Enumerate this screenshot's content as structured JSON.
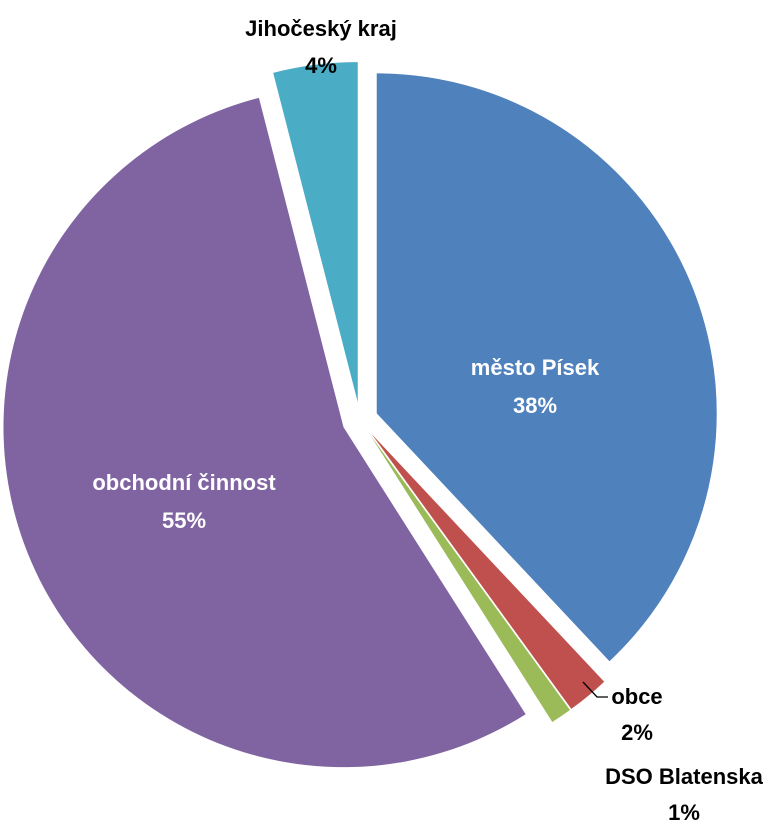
{
  "chart_data": {
    "type": "pie",
    "title": "",
    "slices": [
      {
        "name": "město Písek",
        "value": 38,
        "label": "38%",
        "color": "#4F81BD"
      },
      {
        "name": "obce",
        "value": 2,
        "label": "2%",
        "color": "#C0504D"
      },
      {
        "name": "DSO Blatenska",
        "value": 1,
        "label": "1%",
        "color": "#9BBB59"
      },
      {
        "name": "obchodní činnost",
        "value": 55,
        "label": "55%",
        "color": "#8064A2"
      },
      {
        "name": "Jihočeský kraj",
        "value": 4,
        "label": "4%",
        "color": "#4BACC6"
      }
    ],
    "legend": "none",
    "exploded": true,
    "start_angle_deg": 0,
    "direction": "clockwise"
  }
}
